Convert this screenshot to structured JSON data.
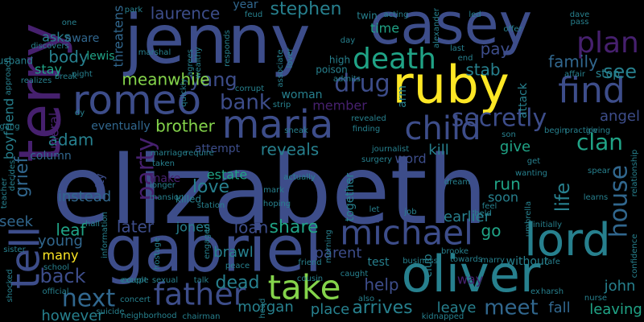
{
  "background": "#000000",
  "palette": {
    "deep_purple": "#46206e",
    "indigo": "#3d4d8a",
    "blue": "#31678e",
    "teal": "#27808e",
    "green": "#20a386",
    "lime": "#84d44b",
    "yellow": "#fde725"
  },
  "words": [
    {
      "text": "elizabeth",
      "color": "indigo"
    },
    {
      "text": "jenny",
      "color": "indigo"
    },
    {
      "text": "casey",
      "color": "indigo"
    },
    {
      "text": "ruby",
      "color": "yellow"
    },
    {
      "text": "gabriel",
      "color": "indigo"
    },
    {
      "text": "oliver",
      "color": "teal"
    },
    {
      "text": "terry",
      "color": "deep_purple"
    },
    {
      "text": "maria",
      "color": "indigo"
    },
    {
      "text": "romeo",
      "color": "indigo"
    },
    {
      "text": "death",
      "color": "green"
    },
    {
      "text": "child",
      "color": "indigo"
    },
    {
      "text": "lord",
      "color": "teal"
    },
    {
      "text": "find",
      "color": "indigo"
    },
    {
      "text": "plan",
      "color": "deep_purple"
    },
    {
      "text": "michael",
      "color": "indigo"
    },
    {
      "text": "father",
      "color": "indigo"
    },
    {
      "text": "take",
      "color": "lime"
    },
    {
      "text": "house",
      "color": "blue"
    },
    {
      "text": "tell",
      "color": "indigo"
    },
    {
      "text": "secretly",
      "color": "indigo"
    },
    {
      "text": "clan",
      "color": "green"
    },
    {
      "text": "angel",
      "color": "indigo"
    },
    {
      "text": "see",
      "color": "teal"
    },
    {
      "text": "party",
      "color": "deep_purple"
    },
    {
      "text": "drug",
      "color": "indigo"
    },
    {
      "text": "next",
      "color": "blue"
    },
    {
      "text": "bank",
      "color": "indigo"
    },
    {
      "text": "stephen",
      "color": "teal"
    },
    {
      "text": "laurence",
      "color": "indigo"
    },
    {
      "text": "yang",
      "color": "indigo"
    },
    {
      "text": "life",
      "color": "teal"
    },
    {
      "text": "family",
      "color": "blue"
    },
    {
      "text": "pay",
      "color": "indigo"
    },
    {
      "text": "stab",
      "color": "teal"
    },
    {
      "text": "meanwhile",
      "color": "lime"
    },
    {
      "text": "body",
      "color": "teal"
    },
    {
      "text": "brother",
      "color": "lime"
    },
    {
      "text": "adam",
      "color": "teal"
    },
    {
      "text": "kill",
      "color": "teal"
    },
    {
      "text": "give",
      "color": "green"
    },
    {
      "text": "reveals",
      "color": "teal"
    },
    {
      "text": "love",
      "color": "teal"
    },
    {
      "text": "estate",
      "color": "green"
    },
    {
      "text": "grief",
      "color": "blue"
    },
    {
      "text": "run",
      "color": "green"
    },
    {
      "text": "soon",
      "color": "teal"
    },
    {
      "text": "word",
      "color": "indigo"
    },
    {
      "text": "share",
      "color": "green"
    },
    {
      "text": "loan",
      "color": "indigo"
    },
    {
      "text": "jones",
      "color": "teal"
    },
    {
      "text": "later",
      "color": "indigo"
    },
    {
      "text": "leaf",
      "color": "green"
    },
    {
      "text": "young",
      "color": "blue"
    },
    {
      "text": "back",
      "color": "indigo"
    },
    {
      "text": "parent",
      "color": "indigo"
    },
    {
      "text": "go",
      "color": "green"
    },
    {
      "text": "dead",
      "color": "teal"
    },
    {
      "text": "brawl",
      "color": "teal"
    },
    {
      "text": "help",
      "color": "indigo"
    },
    {
      "text": "arrives",
      "color": "teal"
    },
    {
      "text": "meet",
      "color": "blue"
    },
    {
      "text": "fall",
      "color": "blue"
    },
    {
      "text": "leaving",
      "color": "green"
    },
    {
      "text": "leave",
      "color": "teal"
    },
    {
      "text": "place",
      "color": "teal"
    },
    {
      "text": "morgan",
      "color": "teal"
    },
    {
      "text": "john",
      "color": "teal"
    },
    {
      "text": "way",
      "color": "deep_purple"
    },
    {
      "text": "instead",
      "color": "blue"
    },
    {
      "text": "seek",
      "color": "blue"
    },
    {
      "text": "many",
      "color": "yellow"
    },
    {
      "text": "however",
      "color": "teal"
    },
    {
      "text": "lewis",
      "color": "green"
    },
    {
      "text": "asks",
      "color": "teal"
    },
    {
      "text": "stay",
      "color": "green"
    },
    {
      "text": "member",
      "color": "deep_purple"
    },
    {
      "text": "time",
      "color": "green"
    },
    {
      "text": "stop",
      "color": "teal"
    },
    {
      "text": "attempt",
      "color": "indigo"
    },
    {
      "text": "eventually",
      "color": "blue"
    },
    {
      "text": "boyfriend",
      "color": "teal"
    },
    {
      "text": "funeral",
      "color": "deep_purple"
    },
    {
      "text": "column",
      "color": "blue"
    },
    {
      "text": "city",
      "color": "indigo"
    },
    {
      "text": "woman",
      "color": "teal"
    },
    {
      "text": "test",
      "color": "teal"
    },
    {
      "text": "earlier",
      "color": "teal"
    },
    {
      "text": "together",
      "color": "teal"
    },
    {
      "text": "club",
      "color": "teal"
    },
    {
      "text": "without",
      "color": "teal"
    },
    {
      "text": "make",
      "color": "deep_purple"
    },
    {
      "text": "threatens",
      "color": "blue"
    },
    {
      "text": "aware",
      "color": "blue"
    },
    {
      "text": "year",
      "color": "blue"
    },
    {
      "text": "arm",
      "color": "teal"
    },
    {
      "text": "high",
      "color": "teal"
    },
    {
      "text": "poison",
      "color": "teal"
    },
    {
      "text": "attack",
      "color": "teal"
    },
    {
      "text": "sneak",
      "color": "teal"
    },
    {
      "text": "couple",
      "color": "teal"
    },
    {
      "text": "husband",
      "color": "teal"
    },
    {
      "text": "break",
      "color": "teal"
    },
    {
      "text": "night",
      "color": "teal"
    },
    {
      "text": "associate",
      "color": "teal"
    },
    {
      "text": "corrupt",
      "color": "teal"
    },
    {
      "text": "strip",
      "color": "teal"
    },
    {
      "text": "journalist",
      "color": "teal"
    },
    {
      "text": "surgery",
      "color": "teal"
    },
    {
      "text": "twin",
      "color": "teal"
    },
    {
      "text": "acting",
      "color": "teal"
    },
    {
      "text": "offer",
      "color": "teal"
    },
    {
      "text": "led",
      "color": "teal"
    },
    {
      "text": "pass",
      "color": "teal"
    },
    {
      "text": "dave",
      "color": "teal"
    },
    {
      "text": "last",
      "color": "teal"
    },
    {
      "text": "end",
      "color": "teal"
    },
    {
      "text": "park",
      "color": "teal"
    },
    {
      "text": "feud",
      "color": "teal"
    },
    {
      "text": "one",
      "color": "teal"
    },
    {
      "text": "discovers",
      "color": "teal"
    },
    {
      "text": "realizes",
      "color": "teal"
    },
    {
      "text": "approach",
      "color": "teal"
    },
    {
      "text": "gang",
      "color": "teal"
    },
    {
      "text": "marshal",
      "color": "teal"
    },
    {
      "text": "agrees",
      "color": "teal"
    },
    {
      "text": "wealthy",
      "color": "teal"
    },
    {
      "text": "quickly",
      "color": "teal"
    },
    {
      "text": "responds",
      "color": "teal"
    },
    {
      "text": "alexander",
      "color": "teal"
    },
    {
      "text": "lover",
      "color": "teal"
    },
    {
      "text": "day",
      "color": "teal"
    },
    {
      "text": "affair",
      "color": "teal"
    },
    {
      "text": "admits",
      "color": "teal"
    },
    {
      "text": "revealed",
      "color": "teal"
    },
    {
      "text": "finding",
      "color": "teal"
    },
    {
      "text": "begin",
      "color": "teal"
    },
    {
      "text": "practice",
      "color": "teal"
    },
    {
      "text": "giving",
      "color": "teal"
    },
    {
      "text": "son",
      "color": "teal"
    },
    {
      "text": "dy",
      "color": "teal"
    },
    {
      "text": "marriage",
      "color": "teal"
    },
    {
      "text": "require",
      "color": "teal"
    },
    {
      "text": "taken",
      "color": "teal"
    },
    {
      "text": "longer",
      "color": "teal"
    },
    {
      "text": "mansion",
      "color": "teal"
    },
    {
      "text": "killed",
      "color": "teal"
    },
    {
      "text": "station",
      "color": "teal"
    },
    {
      "text": "actually",
      "color": "teal"
    },
    {
      "text": "mark",
      "color": "teal"
    },
    {
      "text": "hoping",
      "color": "teal"
    },
    {
      "text": "let",
      "color": "teal"
    },
    {
      "text": "get",
      "color": "teal"
    },
    {
      "text": "dream",
      "color": "teal"
    },
    {
      "text": "wanting",
      "color": "teal"
    },
    {
      "text": "spear",
      "color": "teal"
    },
    {
      "text": "learns",
      "color": "teal"
    },
    {
      "text": "relationship",
      "color": "teal"
    },
    {
      "text": "umbrella",
      "color": "teal"
    },
    {
      "text": "initially",
      "color": "teal"
    },
    {
      "text": "held",
      "color": "teal"
    },
    {
      "text": "feel",
      "color": "teal"
    },
    {
      "text": "job",
      "color": "teal"
    },
    {
      "text": "decides",
      "color": "teal"
    },
    {
      "text": "teacher",
      "color": "teal"
    },
    {
      "text": "information",
      "color": "teal"
    },
    {
      "text": "hall",
      "color": "teal"
    },
    {
      "text": "sister",
      "color": "teal"
    },
    {
      "text": "school",
      "color": "teal"
    },
    {
      "text": "hostage",
      "color": "teal"
    },
    {
      "text": "engaged",
      "color": "teal"
    },
    {
      "text": "morning",
      "color": "teal"
    },
    {
      "text": "friend",
      "color": "teal"
    },
    {
      "text": "peace",
      "color": "teal"
    },
    {
      "text": "business",
      "color": "teal"
    },
    {
      "text": "brooke",
      "color": "teal"
    },
    {
      "text": "towards",
      "color": "teal"
    },
    {
      "text": "marry",
      "color": "teal"
    },
    {
      "text": "rafe",
      "color": "teal"
    },
    {
      "text": "confidence",
      "color": "teal"
    },
    {
      "text": "official",
      "color": "teal"
    },
    {
      "text": "except",
      "color": "teal"
    },
    {
      "text": "sexual",
      "color": "teal"
    },
    {
      "text": "talk",
      "color": "teal"
    },
    {
      "text": "cousin",
      "color": "teal"
    },
    {
      "text": "caught",
      "color": "teal"
    },
    {
      "text": "ex",
      "color": "teal"
    },
    {
      "text": "harsh",
      "color": "teal"
    },
    {
      "text": "nurse",
      "color": "teal"
    },
    {
      "text": "shocked",
      "color": "teal"
    },
    {
      "text": "concert",
      "color": "teal"
    },
    {
      "text": "suicide",
      "color": "teal"
    },
    {
      "text": "neighborhood",
      "color": "teal"
    },
    {
      "text": "chairman",
      "color": "teal"
    },
    {
      "text": "head",
      "color": "teal"
    },
    {
      "text": "also",
      "color": "teal"
    },
    {
      "text": "kidnapped",
      "color": "teal"
    }
  ]
}
